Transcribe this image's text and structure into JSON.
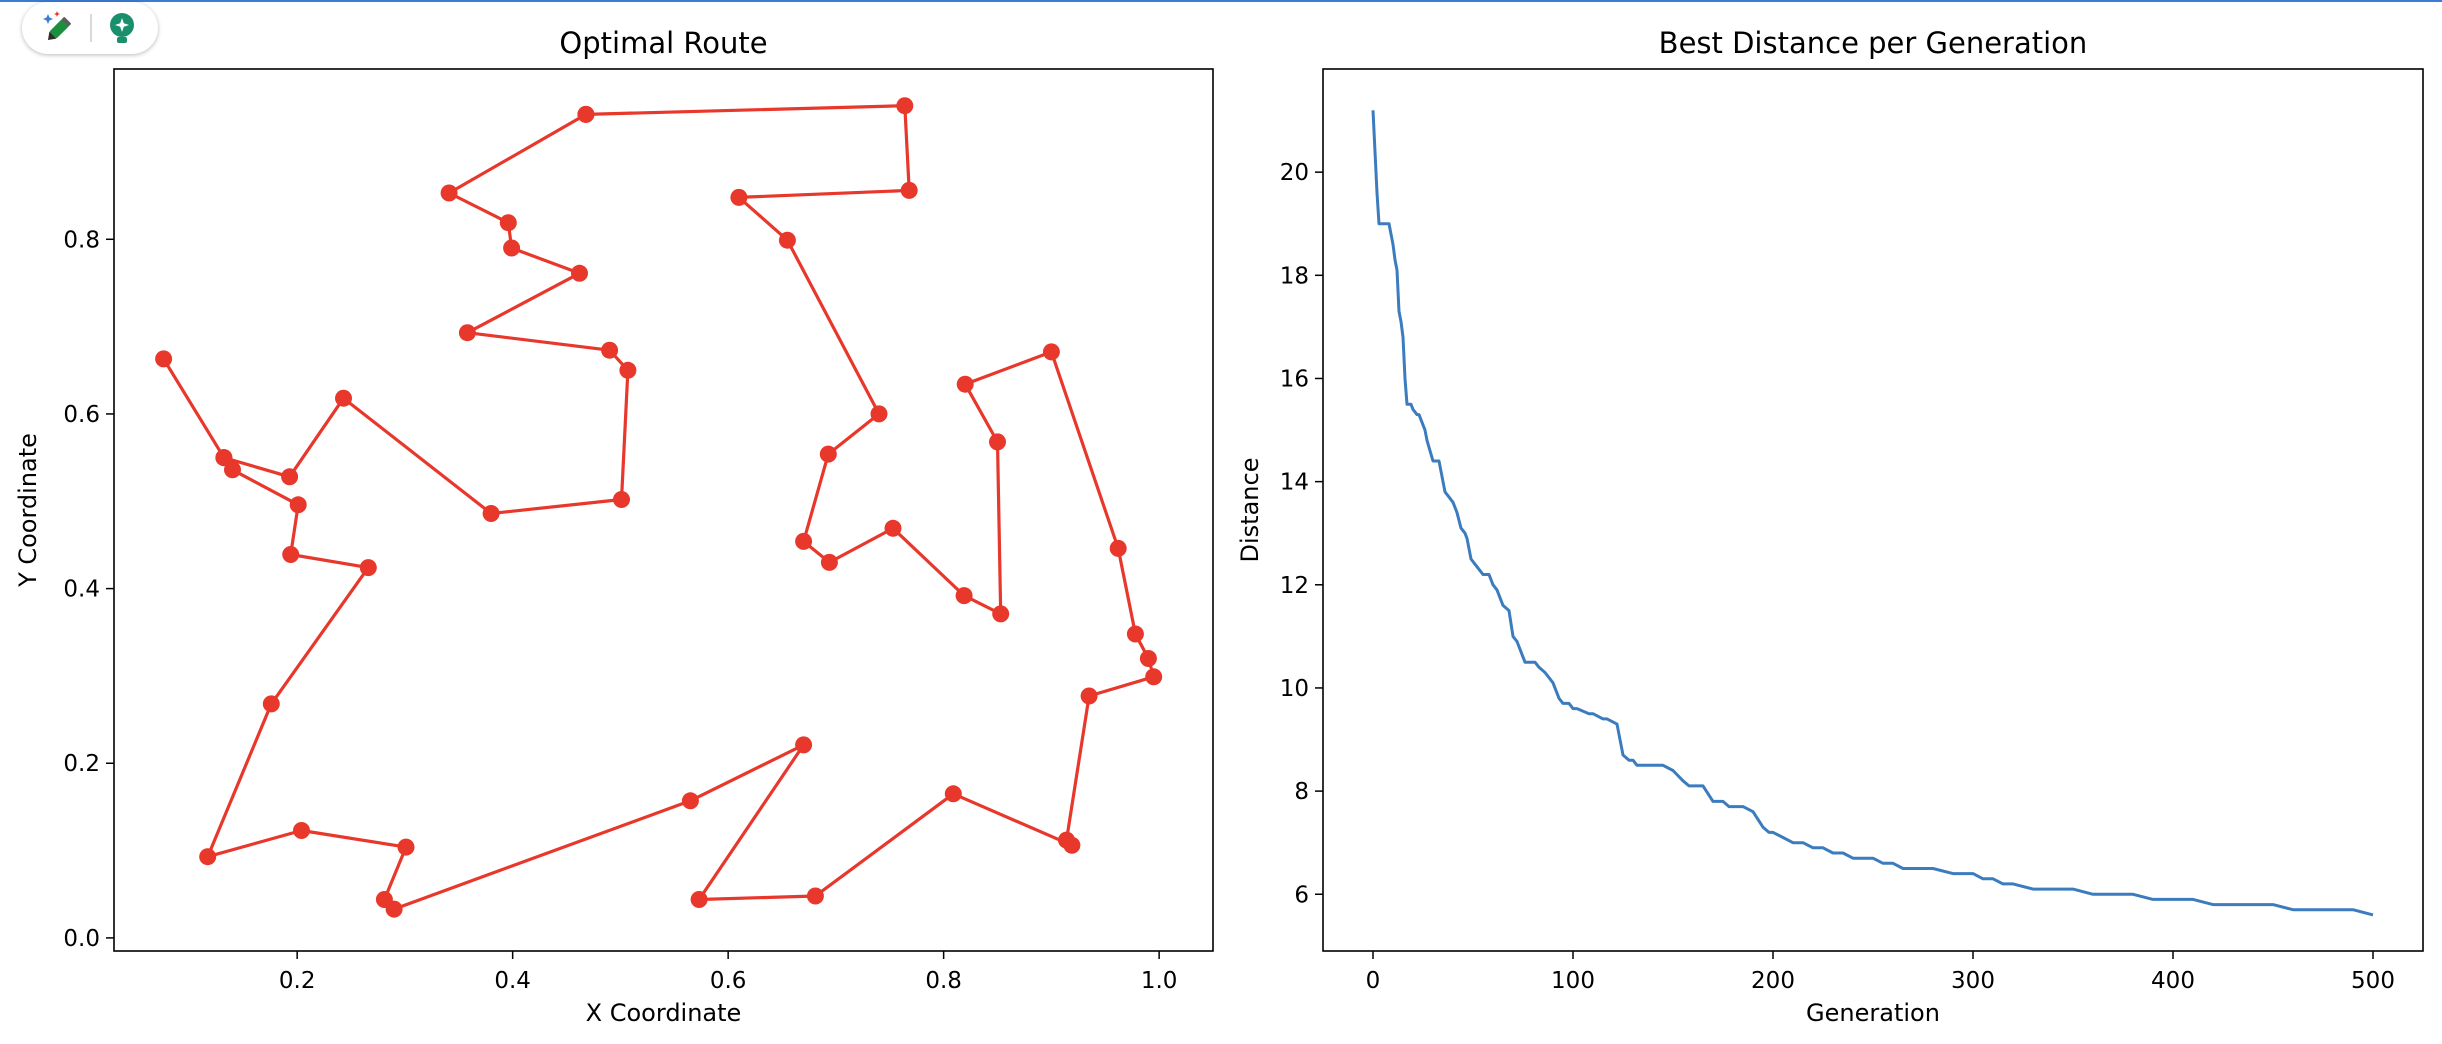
{
  "toolbar": {
    "edit_icon": "magic-pencil-icon",
    "idea_icon": "lightbulb-icon"
  },
  "colors": {
    "route": "#e8372b",
    "distance_line": "#3b7cbf",
    "top_border": "#3a7bd5"
  },
  "chart_data": [
    {
      "type": "line",
      "title": "Optimal Route",
      "xlabel": "X Coordinate",
      "ylabel": "Y Coordinate",
      "xlim": [
        0.03,
        1.05
      ],
      "ylim": [
        -0.015,
        0.995
      ],
      "xticks": [
        0.2,
        0.4,
        0.6,
        0.8,
        1.0
      ],
      "xtick_labels": [
        "0.2",
        "0.4",
        "0.6",
        "0.8",
        "1.0"
      ],
      "yticks": [
        0.0,
        0.2,
        0.4,
        0.6,
        0.8
      ],
      "ytick_labels": [
        "0.0",
        "0.2",
        "0.4",
        "0.6",
        "0.8"
      ],
      "marker": "circle",
      "grid": false,
      "series": [
        {
          "x": [
            0.468,
            0.764,
            0.768,
            0.61,
            0.655,
            0.74,
            0.693,
            0.67,
            0.694,
            0.753,
            0.819,
            0.853,
            0.85,
            0.82,
            0.9,
            0.962,
            0.978,
            0.99,
            0.995,
            0.935,
            0.914,
            0.919,
            0.809,
            0.681,
            0.573,
            0.67,
            0.565,
            0.29,
            0.281,
            0.301,
            0.204,
            0.117,
            0.176,
            0.266,
            0.194,
            0.201,
            0.14,
            0.132,
            0.193,
            0.243,
            0.38,
            0.501,
            0.507,
            0.49,
            0.358,
            0.462,
            0.399,
            0.396,
            0.341,
            0.468
          ],
          "y": [
            0.943,
            0.953,
            0.856,
            0.848,
            0.799,
            0.6,
            0.554,
            0.454,
            0.43,
            0.469,
            0.392,
            0.371,
            0.568,
            0.634,
            0.671,
            0.446,
            0.348,
            0.32,
            0.299,
            0.277,
            0.112,
            0.106,
            0.165,
            0.048,
            0.044,
            0.221,
            0.157,
            0.033,
            0.044,
            0.104,
            0.123,
            0.093,
            0.268,
            0.424,
            0.439,
            0.496,
            0.536,
            0.55,
            0.528,
            0.618,
            0.486,
            0.502,
            0.65,
            0.673,
            0.693,
            0.761,
            0.79,
            0.819,
            0.853,
            0.943
          ]
        },
        {
          "x": [
            0.076,
            0.132
          ],
          "y": [
            0.663,
            0.55
          ]
        }
      ]
    },
    {
      "type": "line",
      "title": "Best Distance per Generation",
      "xlabel": "Generation",
      "ylabel": "Distance",
      "xlim": [
        -25,
        525
      ],
      "ylim": [
        4.9,
        22.0
      ],
      "xticks": [
        0,
        100,
        200,
        300,
        400,
        500
      ],
      "xtick_labels": [
        "0",
        "100",
        "200",
        "300",
        "400",
        "500"
      ],
      "yticks": [
        6,
        8,
        10,
        12,
        14,
        16,
        18,
        20
      ],
      "ytick_labels": [
        "6",
        "8",
        "10",
        "12",
        "14",
        "16",
        "18",
        "20"
      ],
      "grid": false,
      "series": [
        {
          "x": [
            0,
            2,
            3,
            8,
            9,
            10,
            11,
            12,
            13,
            14,
            15,
            16,
            17,
            18,
            19,
            20,
            22,
            23,
            26,
            27,
            30,
            31,
            33,
            35,
            36,
            38,
            40,
            42,
            44,
            46,
            47,
            49,
            51,
            53,
            55,
            58,
            60,
            62,
            65,
            68,
            70,
            72,
            74,
            76,
            79,
            81,
            83,
            86,
            90,
            93,
            95,
            98,
            100,
            102,
            108,
            110,
            115,
            117,
            122,
            125,
            128,
            130,
            132,
            135,
            140,
            145,
            150,
            155,
            158,
            162,
            165,
            170,
            175,
            178,
            180,
            185,
            190,
            195,
            198,
            200,
            205,
            210,
            215,
            220,
            225,
            230,
            235,
            240,
            250,
            255,
            260,
            265,
            270,
            280,
            290,
            300,
            305,
            310,
            315,
            320,
            330,
            340,
            350,
            360,
            370,
            380,
            390,
            400,
            410,
            420,
            430,
            440,
            450,
            460,
            470,
            480,
            490,
            500
          ],
          "y": [
            21.2,
            19.6,
            19.0,
            19.0,
            18.8,
            18.6,
            18.3,
            18.1,
            17.3,
            17.1,
            16.8,
            16.0,
            15.5,
            15.5,
            15.5,
            15.4,
            15.3,
            15.3,
            15.0,
            14.8,
            14.4,
            14.4,
            14.4,
            14.0,
            13.8,
            13.7,
            13.6,
            13.4,
            13.1,
            13.0,
            12.9,
            12.5,
            12.4,
            12.3,
            12.2,
            12.2,
            12.0,
            11.9,
            11.6,
            11.5,
            11.0,
            10.9,
            10.7,
            10.5,
            10.5,
            10.5,
            10.4,
            10.3,
            10.1,
            9.8,
            9.7,
            9.7,
            9.6,
            9.6,
            9.5,
            9.5,
            9.4,
            9.4,
            9.3,
            8.7,
            8.6,
            8.6,
            8.5,
            8.5,
            8.5,
            8.5,
            8.4,
            8.2,
            8.1,
            8.1,
            8.1,
            7.8,
            7.8,
            7.7,
            7.7,
            7.7,
            7.6,
            7.3,
            7.2,
            7.2,
            7.1,
            7.0,
            7.0,
            6.9,
            6.9,
            6.8,
            6.8,
            6.7,
            6.7,
            6.6,
            6.6,
            6.5,
            6.5,
            6.5,
            6.4,
            6.4,
            6.3,
            6.3,
            6.2,
            6.2,
            6.1,
            6.1,
            6.1,
            6.0,
            6.0,
            6.0,
            5.9,
            5.9,
            5.9,
            5.8,
            5.8,
            5.8,
            5.8,
            5.7,
            5.7,
            5.7,
            5.7,
            5.6
          ]
        }
      ]
    }
  ]
}
